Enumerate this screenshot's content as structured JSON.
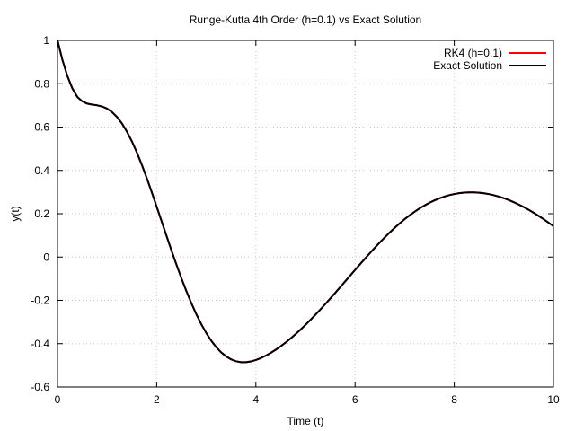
{
  "chart_data": {
    "type": "line",
    "title": "Runge-Kutta 4th Order (h=0.1) vs Exact Solution",
    "xlabel": "Time (t)",
    "ylabel": "y(t)",
    "xlim": [
      0,
      10
    ],
    "ylim": [
      -0.6,
      1
    ],
    "x_ticks": [
      "0",
      "2",
      "4",
      "6",
      "8",
      "10"
    ],
    "y_ticks": [
      "-0.6",
      "-0.4",
      "-0.2",
      "0",
      "0.2",
      "0.4",
      "0.6",
      "0.8",
      "1"
    ],
    "grid": true,
    "legend_position": "top-right",
    "x": [
      0,
      0.1,
      0.2,
      0.3,
      0.4,
      0.5,
      0.6,
      0.7,
      0.8,
      0.9,
      1.0,
      1.1,
      1.2,
      1.3,
      1.4,
      1.5,
      1.6,
      1.7,
      1.8,
      1.9,
      2.0,
      2.1,
      2.2,
      2.3,
      2.4,
      2.5,
      2.6,
      2.7,
      2.8,
      2.9,
      3.0,
      3.1,
      3.2,
      3.3,
      3.4,
      3.5,
      3.6,
      3.7,
      3.8,
      3.9,
      4.0,
      4.1,
      4.2,
      4.3,
      4.4,
      4.5,
      4.6,
      4.7,
      4.8,
      4.9,
      5.0,
      5.1,
      5.2,
      5.3,
      5.4,
      5.5,
      5.6,
      5.7,
      5.8,
      5.9,
      6.0,
      6.1,
      6.2,
      6.3,
      6.4,
      6.5,
      6.6,
      6.7,
      6.8,
      6.9,
      7.0,
      7.1,
      7.2,
      7.3,
      7.4,
      7.5,
      7.6,
      7.7,
      7.8,
      7.9,
      8.0,
      8.1,
      8.2,
      8.3,
      8.4,
      8.5,
      8.6,
      8.7,
      8.8,
      8.9,
      9.0,
      9.1,
      9.2,
      9.3,
      9.4,
      9.5,
      9.6,
      9.7,
      9.8,
      9.9,
      10.0
    ],
    "series": [
      {
        "name": "RK4 (h=0.1)",
        "color": "#ff0000",
        "values": [
          1.0,
          0.9094,
          0.8353,
          0.7782,
          0.7391,
          0.7188,
          0.7081,
          0.7038,
          0.7003,
          0.6949,
          0.6851,
          0.6692,
          0.6465,
          0.6164,
          0.5788,
          0.5341,
          0.4829,
          0.426,
          0.3645,
          0.2996,
          0.2325,
          0.1645,
          0.0965,
          0.0294,
          -0.036,
          -0.0987,
          -0.1581,
          -0.2135,
          -0.2644,
          -0.3103,
          -0.351,
          -0.3862,
          -0.4159,
          -0.4401,
          -0.4588,
          -0.4724,
          -0.4811,
          -0.4853,
          -0.4855,
          -0.482,
          -0.4755,
          -0.4664,
          -0.4554,
          -0.4425,
          -0.428,
          -0.412,
          -0.3947,
          -0.376,
          -0.3562,
          -0.3352,
          -0.3133,
          -0.2904,
          -0.2666,
          -0.2422,
          -0.2171,
          -0.1915,
          -0.1655,
          -0.1392,
          -0.1127,
          -0.0862,
          -0.0597,
          -0.0334,
          -0.0074,
          0.0182,
          0.0432,
          0.0675,
          0.091,
          0.1136,
          0.1351,
          0.1555,
          0.1747,
          0.1926,
          0.2091,
          0.2243,
          0.2381,
          0.2505,
          0.2614,
          0.2709,
          0.279,
          0.2857,
          0.2909,
          0.2948,
          0.2973,
          0.2985,
          0.2984,
          0.297,
          0.2943,
          0.2904,
          0.2853,
          0.279,
          0.2715,
          0.2629,
          0.2532,
          0.2425,
          0.2308,
          0.2181,
          0.2046,
          0.1902,
          0.175,
          0.159,
          0.1423
        ]
      },
      {
        "name": "Exact Solution",
        "color": "#000000",
        "values": [
          1.0,
          0.9094,
          0.8353,
          0.7782,
          0.7391,
          0.7188,
          0.7081,
          0.7038,
          0.7003,
          0.6949,
          0.6851,
          0.6692,
          0.6465,
          0.6164,
          0.5788,
          0.5341,
          0.4829,
          0.426,
          0.3645,
          0.2996,
          0.2325,
          0.1645,
          0.0965,
          0.0294,
          -0.036,
          -0.0987,
          -0.1581,
          -0.2135,
          -0.2644,
          -0.3103,
          -0.351,
          -0.3862,
          -0.4159,
          -0.4401,
          -0.4588,
          -0.4724,
          -0.4811,
          -0.4853,
          -0.4855,
          -0.482,
          -0.4755,
          -0.4664,
          -0.4554,
          -0.4425,
          -0.428,
          -0.412,
          -0.3947,
          -0.376,
          -0.3562,
          -0.3352,
          -0.3133,
          -0.2904,
          -0.2666,
          -0.2422,
          -0.2171,
          -0.1915,
          -0.1655,
          -0.1392,
          -0.1127,
          -0.0862,
          -0.0597,
          -0.0334,
          -0.0074,
          0.0182,
          0.0432,
          0.0675,
          0.091,
          0.1136,
          0.1351,
          0.1555,
          0.1747,
          0.1926,
          0.2091,
          0.2243,
          0.2381,
          0.2505,
          0.2614,
          0.2709,
          0.279,
          0.2857,
          0.2909,
          0.2948,
          0.2973,
          0.2985,
          0.2984,
          0.297,
          0.2943,
          0.2904,
          0.2853,
          0.279,
          0.2715,
          0.2629,
          0.2532,
          0.2425,
          0.2308,
          0.2181,
          0.2046,
          0.1902,
          0.175,
          0.159,
          0.1423
        ]
      }
    ]
  }
}
